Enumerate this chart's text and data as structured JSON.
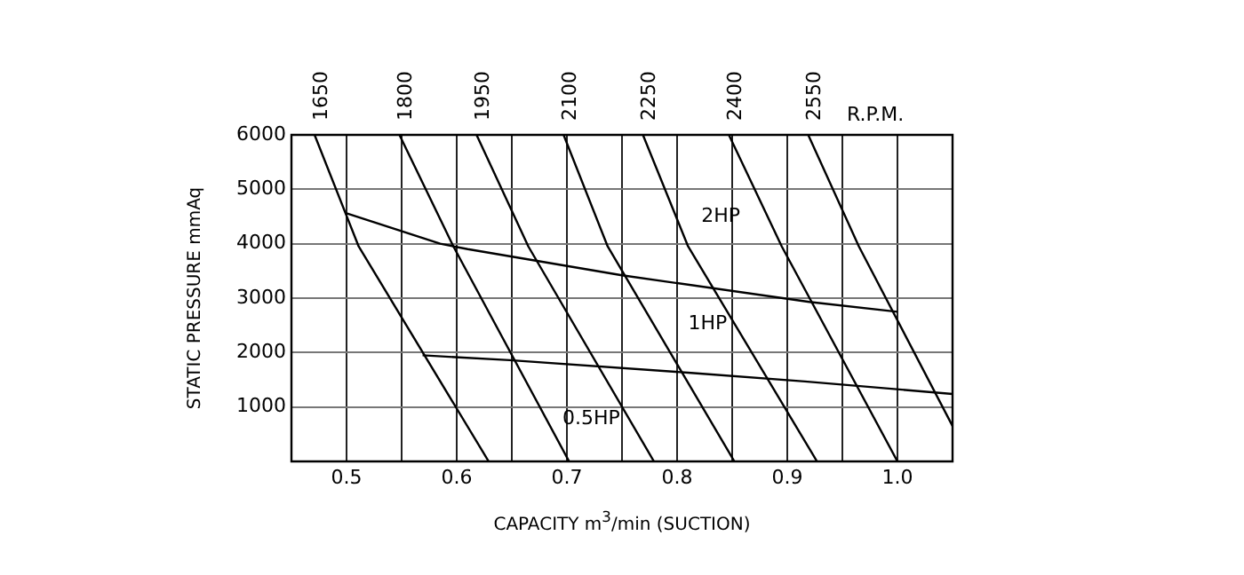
{
  "chart_data": {
    "type": "line",
    "xlabel": "CAPACITY m$^{3}$/min (SUCTION)",
    "ylabel": "STATIC PRESSURE mmAq",
    "xlim": [
      0.45,
      1.05
    ],
    "xticks": [
      {
        "value": 0.5,
        "label": "0.5"
      },
      {
        "value": 0.55,
        "label": null
      },
      {
        "value": 0.6,
        "label": "0.6"
      },
      {
        "value": 0.65,
        "label": null
      },
      {
        "value": 0.7,
        "label": "0.7"
      },
      {
        "value": 0.75,
        "label": null
      },
      {
        "value": 0.8,
        "label": "0.8"
      },
      {
        "value": 0.85,
        "label": null
      },
      {
        "value": 0.9,
        "label": "0.9"
      },
      {
        "value": 0.95,
        "label": null
      },
      {
        "value": 1,
        "label": "1.0"
      }
    ],
    "ylim": [
      0,
      6000
    ],
    "yticks": [
      1000,
      2000,
      3000,
      4000,
      5000,
      6000
    ],
    "grid": true,
    "legend": false,
    "marker": "none",
    "line_style": "solid",
    "series": [
      {
        "name": "1650",
        "color": "#000000",
        "x": [
          0.471,
          0.511,
          0.629
        ],
        "values": [
          6000,
          3950,
          0
        ]
      },
      {
        "name": "1800",
        "color": "#000000",
        "x": [
          0.548,
          0.597,
          0.702
        ],
        "values": [
          6000,
          3950,
          0
        ]
      },
      {
        "name": "1950",
        "color": "#000000",
        "x": [
          0.618,
          0.665,
          0.779
        ],
        "values": [
          6000,
          3950,
          0
        ]
      },
      {
        "name": "2100",
        "color": "#000000",
        "x": [
          0.697,
          0.737,
          0.852
        ],
        "values": [
          6000,
          3950,
          0
        ]
      },
      {
        "name": "2250",
        "color": "#000000",
        "x": [
          0.769,
          0.81,
          0.927
        ],
        "values": [
          6000,
          3950,
          0
        ]
      },
      {
        "name": "2400",
        "color": "#000000",
        "x": [
          0.847,
          0.895,
          1.0
        ],
        "values": [
          6000,
          3950,
          0
        ]
      },
      {
        "name": "2550",
        "color": "#000000",
        "x": [
          0.919,
          0.965,
          1.05
        ],
        "values": [
          6000,
          3950,
          650
        ]
      },
      {
        "color": "#000000",
        "x": [
          0.5,
          0.585,
          0.61,
          0.75,
          0.92,
          1.0
        ],
        "values": [
          4560,
          4000,
          3900,
          3420,
          2930,
          2750
        ]
      },
      {
        "color": "#000000",
        "x": [
          0.569,
          0.648,
          0.81,
          0.916,
          1.05
        ],
        "values": [
          1950,
          1860,
          1630,
          1470,
          1240
        ]
      }
    ],
    "annotations": [
      "R.P.M.",
      "2HP",
      "1HP",
      "0.5HP"
    ]
  }
}
